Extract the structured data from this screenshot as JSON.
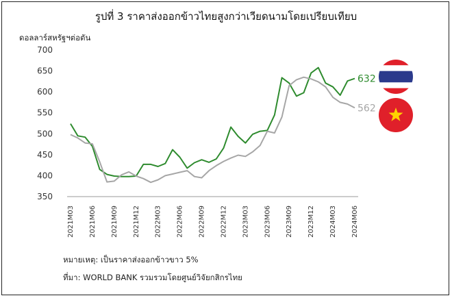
{
  "chart_data": {
    "type": "line",
    "title": "รูปที่ 3 ราคาส่งออกข้าวไทยสูงกว่าเวียดนามโดยเปรียบเทียบ",
    "ylabel": "ดอลลาร์สหรัฐฯต่อตัน",
    "ylim": [
      350,
      700
    ],
    "yticks": [
      350,
      400,
      450,
      500,
      550,
      600,
      650,
      700
    ],
    "grid": false,
    "legend": "flag icons at line ends (right)",
    "x": [
      "2021M03",
      "2021M04",
      "2021M05",
      "2021M06",
      "2021M07",
      "2021M08",
      "2021M09",
      "2021M10",
      "2021M11",
      "2021M12",
      "2022M01",
      "2022M02",
      "2022M03",
      "2022M04",
      "2022M05",
      "2022M06",
      "2022M07",
      "2022M08",
      "2022M09",
      "2022M10",
      "2022M11",
      "2022M12",
      "2023M01",
      "2023M02",
      "2023M03",
      "2023M04",
      "2023M05",
      "2023M06",
      "2023M07",
      "2023M08",
      "2023M09",
      "2023M10",
      "2023M11",
      "2023M12",
      "2024M01",
      "2024M02",
      "2024M03",
      "2024M04",
      "2024M05",
      "2024M06"
    ],
    "xtick_labels": [
      "2021M03",
      "2021M06",
      "2021M09",
      "2021M12",
      "2022M03",
      "2022M06",
      "2022M09",
      "2022M12",
      "2023M03",
      "2023M06",
      "2023M09",
      "2023M12",
      "2024M03",
      "2024M06"
    ],
    "series": [
      {
        "name": "",
        "color": "#2e8b2e",
        "end_label": "632",
        "values": [
          524,
          495,
          492,
          470,
          415,
          403,
          399,
          398,
          398,
          399,
          427,
          427,
          422,
          429,
          462,
          444,
          418,
          431,
          438,
          432,
          440,
          466,
          516,
          494,
          478,
          499,
          506,
          508,
          545,
          634,
          621,
          590,
          598,
          645,
          658,
          621,
          612,
          592,
          626,
          632
        ]
      },
      {
        "name": "",
        "color": "#a6a6a6",
        "end_label": "562",
        "values": [
          498,
          490,
          478,
          476,
          433,
          385,
          387,
          402,
          409,
          399,
          393,
          384,
          390,
          400,
          404,
          408,
          412,
          398,
          395,
          412,
          424,
          434,
          442,
          449,
          446,
          457,
          472,
          506,
          502,
          540,
          615,
          629,
          635,
          631,
          624,
          612,
          587,
          575,
          571,
          562
        ]
      }
    ]
  },
  "flags": {
    "thailand": "thailand-flag-icon",
    "vietnam": "vietnam-flag-icon",
    "colors": {
      "red": "#e0202a",
      "blue": "#2b3a8c",
      "white": "#ffffff",
      "star": "#ffd400"
    }
  },
  "notes": {
    "remark": "หมายเหตุ: เป็นราคาส่งออกข้าวขาว 5%",
    "source": "ที่มา: WORLD BANK รวมรวมโดยศูนย์วิจัยกสิกรไทย"
  }
}
